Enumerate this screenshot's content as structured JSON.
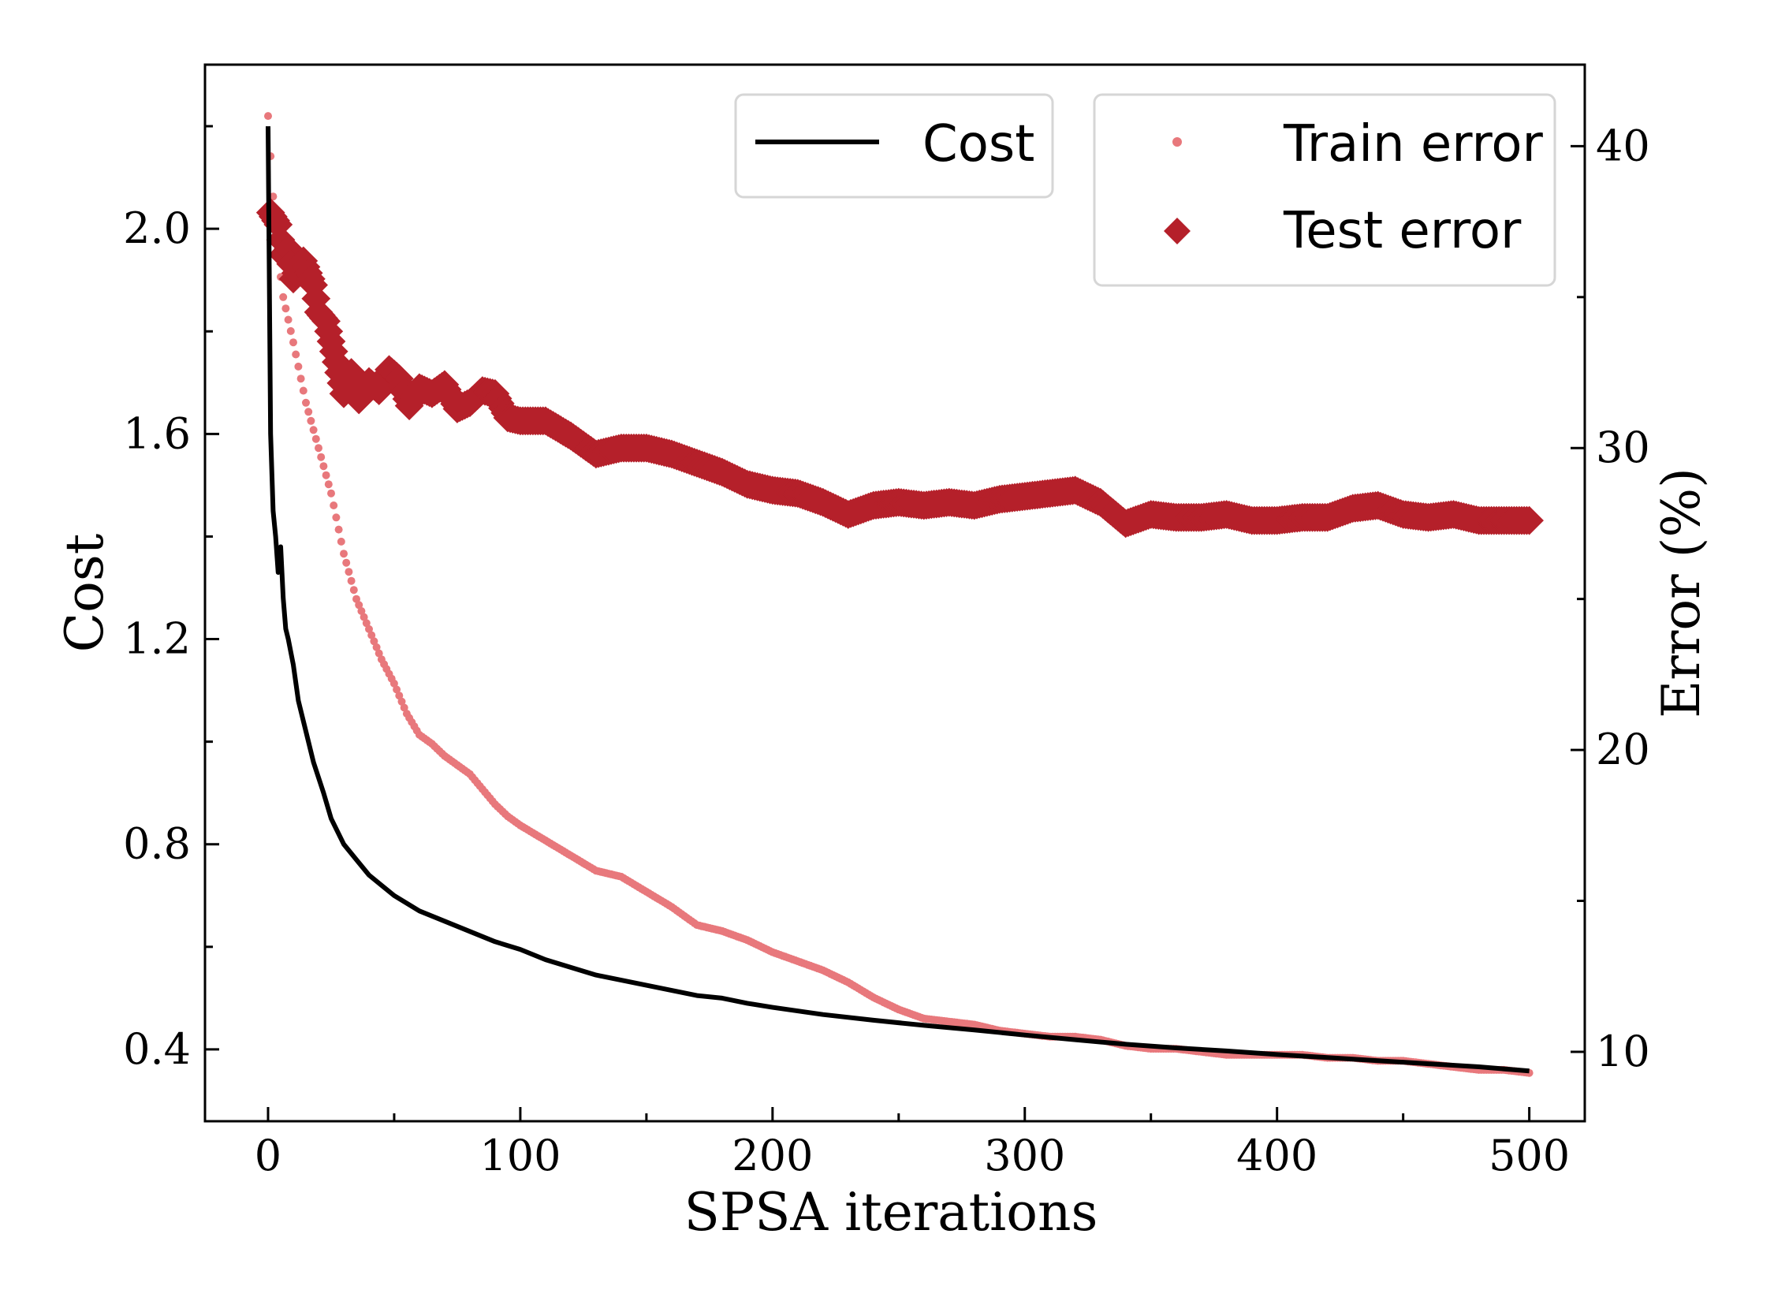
{
  "chart_data": {
    "type": "line",
    "xlabel": "SPSA iterations",
    "ylabel_left": "Cost",
    "ylabel_right": "Error (%)",
    "xlim": [
      -25,
      522
    ],
    "ylim_left": [
      0.26,
      2.32
    ],
    "ylim_right": [
      7.7,
      42.7
    ],
    "xticks": [
      0,
      100,
      200,
      300,
      400,
      500
    ],
    "xticks_minor": [
      50,
      150,
      250,
      350,
      450
    ],
    "yticks_left": [
      0.4,
      0.8,
      1.2,
      1.6,
      2.0
    ],
    "yticks_left_minor": [
      0.6,
      1.0,
      1.4,
      1.8,
      2.2
    ],
    "yticks_right": [
      10,
      20,
      30,
      40
    ],
    "yticks_right_minor": [
      15,
      25,
      35
    ],
    "legend_left": {
      "placement": "top-center",
      "entries": [
        "Cost"
      ]
    },
    "legend_right": {
      "placement": "top-right",
      "entries": [
        "Train error",
        "Test error"
      ]
    },
    "colors": {
      "cost": "#000000",
      "train": "#e8787c",
      "test": "#b5202a"
    },
    "series": [
      {
        "name": "Cost",
        "axis": "left",
        "style": "line",
        "x": [
          0,
          1,
          2,
          3,
          4,
          5,
          6,
          7,
          8,
          10,
          12,
          14,
          16,
          18,
          20,
          22,
          25,
          28,
          30,
          35,
          40,
          45,
          50,
          60,
          70,
          80,
          90,
          100,
          110,
          120,
          130,
          140,
          150,
          160,
          170,
          180,
          190,
          200,
          220,
          240,
          260,
          280,
          300,
          320,
          340,
          360,
          380,
          400,
          420,
          440,
          460,
          480,
          500
        ],
        "y": [
          2.2,
          1.6,
          1.45,
          1.4,
          1.33,
          1.38,
          1.28,
          1.22,
          1.2,
          1.15,
          1.08,
          1.04,
          1.0,
          0.96,
          0.93,
          0.9,
          0.85,
          0.82,
          0.8,
          0.77,
          0.74,
          0.72,
          0.7,
          0.67,
          0.65,
          0.63,
          0.61,
          0.595,
          0.575,
          0.56,
          0.545,
          0.535,
          0.525,
          0.515,
          0.505,
          0.5,
          0.49,
          0.482,
          0.468,
          0.457,
          0.447,
          0.438,
          0.428,
          0.419,
          0.41,
          0.403,
          0.397,
          0.39,
          0.384,
          0.378,
          0.372,
          0.366,
          0.358
        ]
      },
      {
        "name": "Train error",
        "axis": "right",
        "style": "dots",
        "x": [
          0,
          3,
          6,
          10,
          15,
          20,
          25,
          30,
          35,
          40,
          45,
          50,
          55,
          60,
          65,
          70,
          75,
          80,
          85,
          90,
          95,
          100,
          110,
          120,
          130,
          140,
          150,
          160,
          170,
          180,
          190,
          200,
          210,
          220,
          230,
          240,
          250,
          260,
          270,
          280,
          290,
          300,
          310,
          320,
          330,
          340,
          350,
          360,
          370,
          380,
          390,
          400,
          410,
          420,
          430,
          440,
          450,
          460,
          470,
          480,
          490,
          500
        ],
        "y": [
          41,
          37,
          35,
          33.5,
          31.5,
          30,
          28.5,
          26.5,
          25,
          24,
          23,
          22.2,
          21.2,
          20.5,
          20.2,
          19.8,
          19.5,
          19.2,
          18.7,
          18.2,
          17.8,
          17.5,
          17,
          16.5,
          16,
          15.8,
          15.3,
          14.8,
          14.2,
          14,
          13.7,
          13.3,
          13,
          12.7,
          12.3,
          11.8,
          11.4,
          11.1,
          11,
          10.9,
          10.7,
          10.6,
          10.5,
          10.5,
          10.4,
          10.2,
          10.1,
          10.1,
          10,
          9.9,
          9.9,
          9.9,
          9.9,
          9.8,
          9.8,
          9.7,
          9.7,
          9.6,
          9.5,
          9.4,
          9.4,
          9.3
        ]
      },
      {
        "name": "Test error",
        "axis": "right",
        "style": "diamonds",
        "x": [
          1,
          4,
          6,
          8,
          10,
          12,
          14,
          16,
          18,
          20,
          23,
          26,
          30,
          33,
          36,
          40,
          44,
          48,
          52,
          56,
          60,
          65,
          70,
          75,
          80,
          85,
          90,
          95,
          100,
          110,
          120,
          130,
          140,
          150,
          160,
          170,
          180,
          190,
          200,
          210,
          220,
          230,
          240,
          250,
          260,
          270,
          280,
          290,
          300,
          310,
          320,
          330,
          340,
          350,
          360,
          370,
          380,
          390,
          400,
          410,
          420,
          430,
          440,
          450,
          460,
          470,
          480,
          490,
          500
        ],
        "y": [
          37.8,
          37.4,
          36.4,
          36.6,
          35.6,
          36,
          36.2,
          35.8,
          35.4,
          34.5,
          34.2,
          33.2,
          31.8,
          32.5,
          31.6,
          32.2,
          31.9,
          32.6,
          32.3,
          31.4,
          32,
          31.8,
          32.1,
          31.3,
          31.5,
          31.9,
          31.8,
          31.0,
          30.9,
          30.9,
          30.4,
          29.8,
          30.0,
          30.0,
          29.8,
          29.5,
          29.2,
          28.8,
          28.6,
          28.5,
          28.2,
          27.8,
          28.1,
          28.2,
          28.1,
          28.2,
          28.1,
          28.3,
          28.4,
          28.5,
          28.6,
          28.2,
          27.5,
          27.8,
          27.7,
          27.7,
          27.8,
          27.6,
          27.6,
          27.7,
          27.7,
          28.0,
          28.1,
          27.8,
          27.7,
          27.8,
          27.6,
          27.6,
          27.6
        ]
      }
    ]
  }
}
